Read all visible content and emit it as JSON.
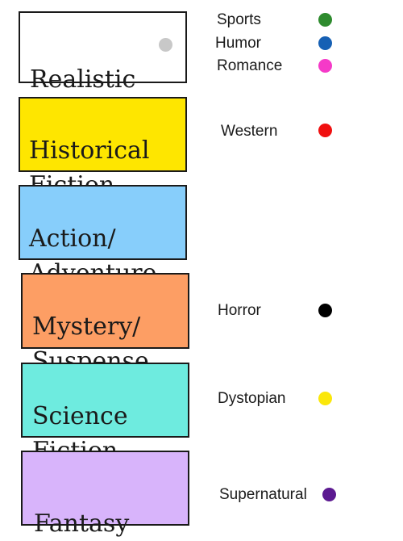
{
  "genres": [
    {
      "label": "Realistic",
      "color": "#ffffff",
      "dot_color": "#c8c8c8"
    },
    {
      "label": "Historical\nFiction",
      "color": "#fee600"
    },
    {
      "label": "Action/\nAdventure",
      "color": "#87cefb"
    },
    {
      "label": "Mystery/\nSuspense",
      "color": "#fd9e64"
    },
    {
      "label": "Science\n Fiction",
      "color": "#6eebdf"
    },
    {
      "label": "Fantasy",
      "color": "#d8b4fb"
    }
  ],
  "subgenres": [
    {
      "label": "Sports",
      "dot_color": "#2e8b2e"
    },
    {
      "label": "Humor",
      "dot_color": "#1660b4"
    },
    {
      "label": "Romance",
      "dot_color": "#f53ac8"
    },
    {
      "label": "Western",
      "dot_color": "#f01010"
    },
    {
      "label": "Horror",
      "dot_color": "#000000"
    },
    {
      "label": "Dystopian",
      "dot_color": "#fbe70a"
    },
    {
      "label": "Supernatural",
      "dot_color": "#5c1a91"
    }
  ]
}
